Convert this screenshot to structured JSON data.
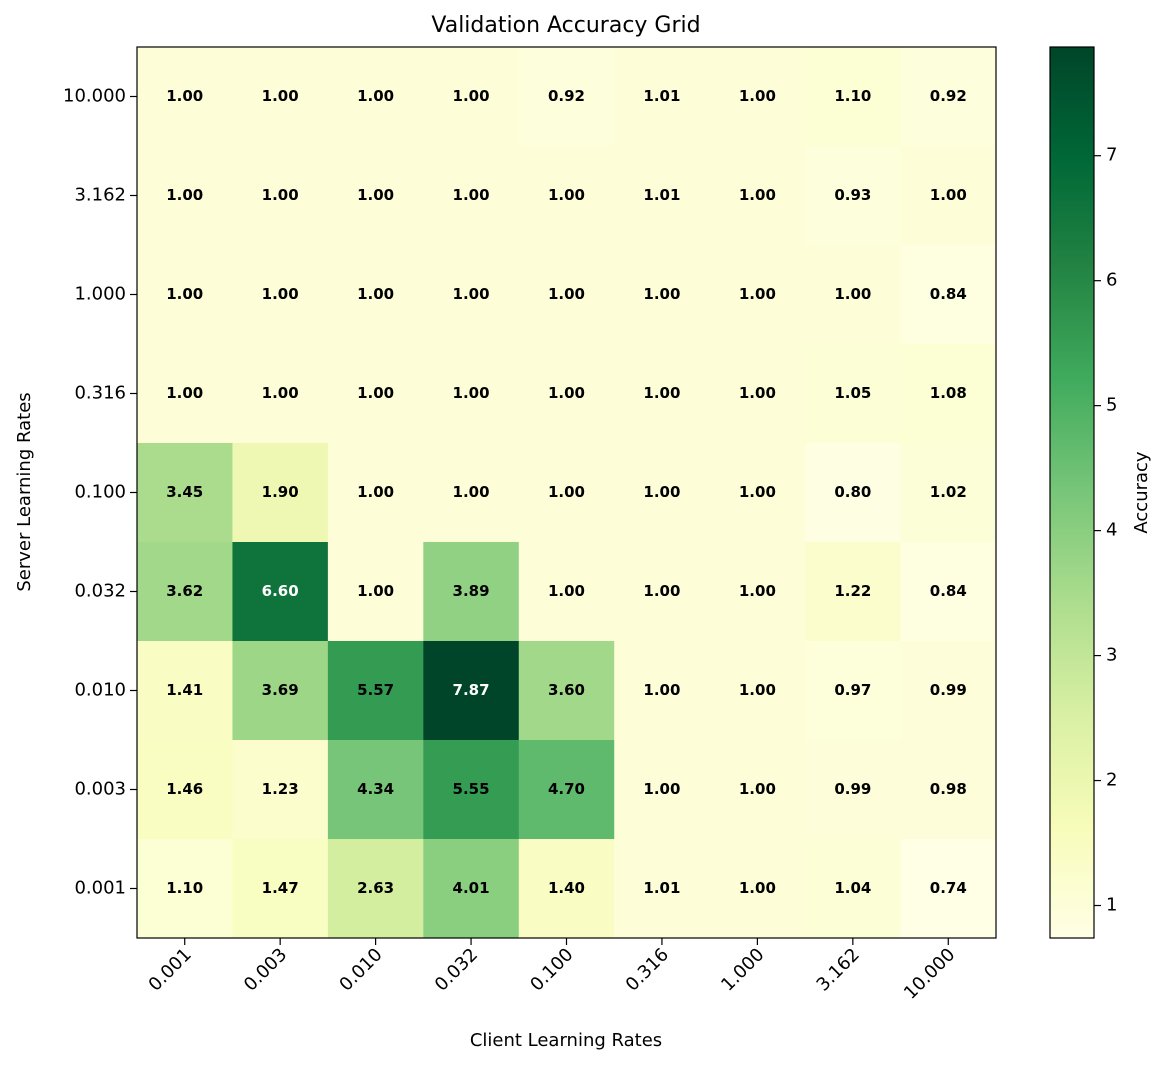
{
  "chart_data": {
    "type": "heatmap",
    "title": "Validation Accuracy Grid",
    "x_label": "Client Learning Rates",
    "y_label": "Server Learning Rates",
    "x_categories": [
      "0.001",
      "0.003",
      "0.010",
      "0.032",
      "0.100",
      "0.316",
      "1.000",
      "3.162",
      "10.000"
    ],
    "y_categories": [
      "10.000",
      "3.162",
      "1.000",
      "0.316",
      "0.100",
      "0.032",
      "0.010",
      "0.003",
      "0.001"
    ],
    "values": [
      [
        1.0,
        1.0,
        1.0,
        1.0,
        0.92,
        1.01,
        1.0,
        1.1,
        0.92
      ],
      [
        1.0,
        1.0,
        1.0,
        1.0,
        1.0,
        1.01,
        1.0,
        0.93,
        1.0
      ],
      [
        1.0,
        1.0,
        1.0,
        1.0,
        1.0,
        1.0,
        1.0,
        1.0,
        0.84
      ],
      [
        1.0,
        1.0,
        1.0,
        1.0,
        1.0,
        1.0,
        1.0,
        1.05,
        1.08
      ],
      [
        3.45,
        1.9,
        1.0,
        1.0,
        1.0,
        1.0,
        1.0,
        0.8,
        1.02
      ],
      [
        3.62,
        6.6,
        1.0,
        3.89,
        1.0,
        1.0,
        1.0,
        1.22,
        0.84
      ],
      [
        1.41,
        3.69,
        5.57,
        7.87,
        3.6,
        1.0,
        1.0,
        0.97,
        0.99
      ],
      [
        1.46,
        1.23,
        4.34,
        5.55,
        4.7,
        1.0,
        1.0,
        0.99,
        0.98
      ],
      [
        1.1,
        1.47,
        2.63,
        4.01,
        1.4,
        1.01,
        1.0,
        1.04,
        0.74
      ]
    ],
    "value_labels": [
      [
        "1.00",
        "1.00",
        "1.00",
        "1.00",
        "0.92",
        "1.01",
        "1.00",
        "1.10",
        "0.92"
      ],
      [
        "1.00",
        "1.00",
        "1.00",
        "1.00",
        "1.00",
        "1.01",
        "1.00",
        "0.93",
        "1.00"
      ],
      [
        "1.00",
        "1.00",
        "1.00",
        "1.00",
        "1.00",
        "1.00",
        "1.00",
        "1.00",
        "0.84"
      ],
      [
        "1.00",
        "1.00",
        "1.00",
        "1.00",
        "1.00",
        "1.00",
        "1.00",
        "1.05",
        "1.08"
      ],
      [
        "3.45",
        "1.90",
        "1.00",
        "1.00",
        "1.00",
        "1.00",
        "1.00",
        "0.80",
        "1.02"
      ],
      [
        "3.62",
        "6.60",
        "1.00",
        "3.89",
        "1.00",
        "1.00",
        "1.00",
        "1.22",
        "0.84"
      ],
      [
        "1.41",
        "3.69",
        "5.57",
        "7.87",
        "3.60",
        "1.00",
        "1.00",
        "0.97",
        "0.99"
      ],
      [
        "1.46",
        "1.23",
        "4.34",
        "5.55",
        "4.70",
        "1.00",
        "1.00",
        "0.99",
        "0.98"
      ],
      [
        "1.10",
        "1.47",
        "2.63",
        "4.01",
        "1.40",
        "1.01",
        "1.00",
        "1.04",
        "0.74"
      ]
    ],
    "colorbar": {
      "label": "Accuracy",
      "lim": [
        0.74,
        7.87
      ],
      "ticks": [
        1,
        2,
        3,
        4,
        5,
        6,
        7
      ]
    },
    "colormap": [
      "#ffffe5",
      "#f7fcb9",
      "#d9f0a3",
      "#addd8e",
      "#78c679",
      "#41ab5d",
      "#238443",
      "#006837",
      "#004529"
    ]
  }
}
